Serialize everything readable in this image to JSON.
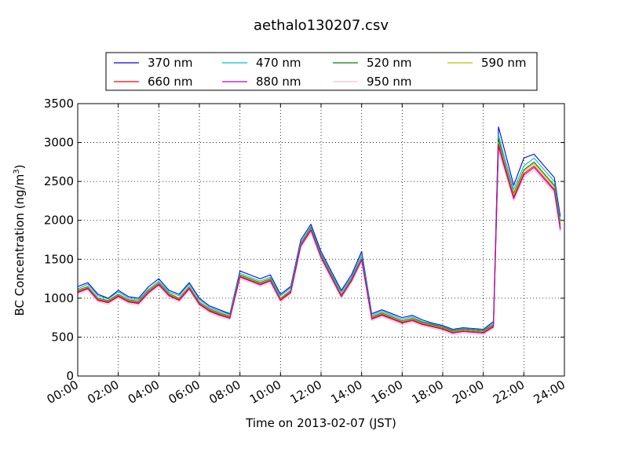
{
  "chart_data": {
    "type": "line",
    "title": "aethalo130207.csv",
    "xlabel": "Time on 2013-02-07 (JST)",
    "ylabel": "BC Concentration (ng/m",
    "ylabel_sup": "3",
    "ylabel_suffix": ")",
    "xlim": [
      0,
      24
    ],
    "ylim": [
      0,
      3500
    ],
    "x_unit": "hours",
    "grid": true,
    "grid_style": "dotted",
    "legend_position": "top-center",
    "legend_columns": 4,
    "x_tick_labels": [
      "00:00",
      "02:00",
      "04:00",
      "06:00",
      "08:00",
      "10:00",
      "12:00",
      "14:00",
      "16:00",
      "18:00",
      "20:00",
      "22:00",
      "24:00"
    ],
    "x_tick_values": [
      0,
      2,
      4,
      6,
      8,
      10,
      12,
      14,
      16,
      18,
      20,
      22,
      24
    ],
    "y_tick_values": [
      0,
      500,
      1000,
      1500,
      2000,
      2500,
      3000,
      3500
    ],
    "y_tick_labels": [
      "0",
      "500",
      "1000",
      "1500",
      "2000",
      "2500",
      "3000",
      "3500"
    ],
    "x": [
      0,
      0.5,
      1,
      1.5,
      2,
      2.5,
      3,
      3.5,
      4,
      4.5,
      5,
      5.5,
      6,
      6.5,
      7,
      7.5,
      8,
      8.5,
      9,
      9.5,
      10,
      10.5,
      11,
      11.5,
      12,
      12.5,
      13,
      13.5,
      14,
      14.5,
      15,
      15.5,
      16,
      16.5,
      17,
      17.5,
      18,
      18.5,
      19,
      19.5,
      20,
      20.5,
      20.75,
      21,
      21.5,
      22,
      22.5,
      23,
      23.5,
      23.8
    ],
    "series": [
      {
        "name": "370 nm",
        "color": "#0000ff",
        "values": [
          1150,
          1200,
          1050,
          1000,
          1100,
          1020,
          1000,
          1150,
          1250,
          1100,
          1050,
          1200,
          1000,
          900,
          850,
          800,
          1350,
          1300,
          1250,
          1300,
          1050,
          1150,
          1750,
          1950,
          1600,
          1350,
          1100,
          1300,
          1600,
          800,
          850,
          800,
          750,
          780,
          720,
          680,
          650,
          600,
          620,
          610,
          600,
          700,
          3200,
          2950,
          2450,
          2800,
          2850,
          2700,
          2550,
          2050
        ]
      },
      {
        "name": "470 nm",
        "color": "#00bfbf",
        "values": [
          1120,
          1180,
          1030,
          990,
          1080,
          1000,
          980,
          1120,
          1220,
          1080,
          1030,
          1180,
          980,
          880,
          830,
          790,
          1320,
          1270,
          1220,
          1270,
          1030,
          1130,
          1720,
          1920,
          1570,
          1320,
          1080,
          1270,
          1560,
          780,
          830,
          780,
          730,
          760,
          700,
          670,
          640,
          590,
          610,
          600,
          590,
          680,
          3100,
          2850,
          2400,
          2700,
          2800,
          2650,
          2500,
          2000
        ]
      },
      {
        "name": "520 nm",
        "color": "#008000",
        "values": [
          1100,
          1150,
          1000,
          970,
          1050,
          980,
          960,
          1100,
          1200,
          1060,
          1000,
          1150,
          950,
          860,
          810,
          770,
          1300,
          1250,
          1200,
          1250,
          1000,
          1100,
          1700,
          1900,
          1550,
          1300,
          1050,
          1250,
          1520,
          760,
          810,
          760,
          710,
          740,
          690,
          660,
          630,
          580,
          600,
          590,
          580,
          660,
          3050,
          2800,
          2350,
          2650,
          2750,
          2600,
          2450,
          1950
        ]
      },
      {
        "name": "590 nm",
        "color": "#bfbf00",
        "values": [
          1090,
          1140,
          990,
          960,
          1040,
          970,
          950,
          1090,
          1190,
          1050,
          990,
          1140,
          940,
          850,
          800,
          760,
          1290,
          1240,
          1190,
          1240,
          990,
          1090,
          1690,
          1890,
          1540,
          1290,
          1040,
          1240,
          1510,
          750,
          800,
          750,
          700,
          730,
          680,
          650,
          620,
          570,
          590,
          580,
          570,
          650,
          3000,
          2780,
          2330,
          2630,
          2730,
          2580,
          2430,
          1930
        ]
      },
      {
        "name": "660 nm",
        "color": "#ff0000",
        "values": [
          1080,
          1130,
          980,
          950,
          1030,
          960,
          940,
          1080,
          1180,
          1040,
          980,
          1130,
          930,
          840,
          790,
          750,
          1280,
          1230,
          1180,
          1230,
          980,
          1080,
          1680,
          1880,
          1530,
          1280,
          1030,
          1230,
          1500,
          740,
          790,
          740,
          690,
          720,
          670,
          640,
          610,
          560,
          580,
          570,
          560,
          640,
          2980,
          2750,
          2300,
          2600,
          2700,
          2550,
          2400,
          1900
        ]
      },
      {
        "name": "880 nm",
        "color": "#bf00bf",
        "values": [
          1070,
          1120,
          970,
          940,
          1020,
          950,
          930,
          1070,
          1170,
          1030,
          970,
          1120,
          920,
          830,
          780,
          740,
          1270,
          1220,
          1170,
          1220,
          970,
          1070,
          1670,
          1870,
          1520,
          1270,
          1020,
          1220,
          1490,
          730,
          780,
          730,
          680,
          710,
          660,
          630,
          600,
          550,
          570,
          560,
          550,
          630,
          2950,
          2720,
          2280,
          2580,
          2680,
          2530,
          2380,
          1880
        ]
      },
      {
        "name": "950 nm",
        "color": "#ffc0cb",
        "values": [
          1050,
          1100,
          950,
          920,
          1000,
          930,
          910,
          1050,
          1150,
          1010,
          950,
          1100,
          900,
          810,
          760,
          720,
          1250,
          1200,
          1150,
          1200,
          950,
          1050,
          1650,
          1850,
          1500,
          1250,
          1000,
          1200,
          1470,
          710,
          760,
          710,
          660,
          690,
          640,
          610,
          580,
          530,
          550,
          540,
          530,
          610,
          2900,
          2680,
          2250,
          2550,
          2650,
          2500,
          2350,
          1850
        ]
      }
    ]
  }
}
